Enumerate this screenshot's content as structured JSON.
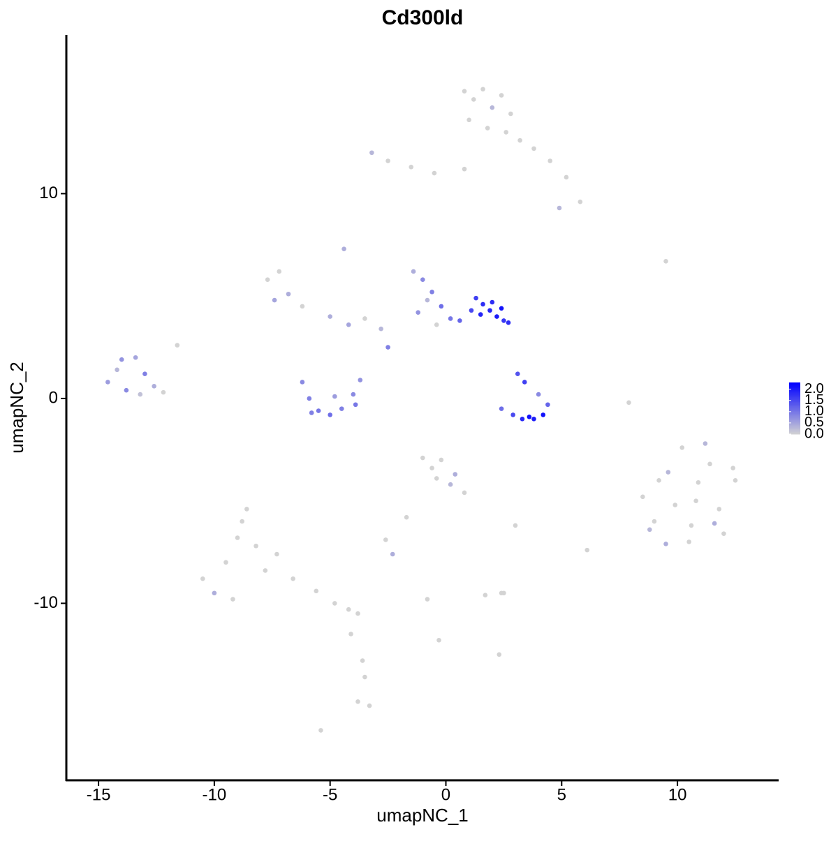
{
  "chart_data": {
    "type": "scatter",
    "title": "Cd300ld",
    "x_label": "umapNC_1",
    "y_label": "umapNC_2",
    "xlim": [
      -16.39,
      14.37
    ],
    "ylim": [
      -18.64,
      17.75
    ],
    "xticks": [
      -15,
      -10,
      -5,
      0,
      5,
      10
    ],
    "yticks": [
      -10,
      0,
      10
    ],
    "low_color": "#d3d3d3",
    "high_color": "#0000ff",
    "colorbar_lim": [
      0,
      2.3
    ],
    "colorbar_ticks": [
      {
        "value": 0,
        "label": "0.0"
      },
      {
        "value": 0.5,
        "label": "0.5"
      },
      {
        "value": 1,
        "label": "1.0"
      },
      {
        "value": 1.5,
        "label": "1.5"
      },
      {
        "value": 2,
        "label": "2.0"
      }
    ],
    "x": [
      0.8,
      1.2,
      1.6,
      2.0,
      2.4,
      2.8,
      1.0,
      1.8,
      2.6,
      3.2,
      3.8,
      4.5,
      5.2,
      5.8,
      4.9,
      -3.2,
      -2.5,
      -1.5,
      -0.5,
      0.8,
      -14.6,
      -14.2,
      -13.8,
      -13.4,
      -13.0,
      -12.6,
      -14.0,
      -13.2,
      -12.2,
      -11.6,
      -7.7,
      -7.2,
      -6.8,
      -7.4,
      -6.2,
      -5.0,
      -4.2,
      -3.5,
      -4.4,
      -2.8,
      -6.2,
      -5.9,
      -5.5,
      -5.0,
      -4.5,
      -4.0,
      -3.7,
      -3.9,
      -5.8,
      -4.8,
      -1.4,
      -1.0,
      -0.6,
      -0.2,
      -0.8,
      -1.2,
      -0.4,
      0.2,
      0.6,
      -2.5,
      1.3,
      1.6,
      1.9,
      2.2,
      2.5,
      1.5,
      2.0,
      2.4,
      1.1,
      2.7,
      2.4,
      2.9,
      3.3,
      3.8,
      4.2,
      4.4,
      3.1,
      3.4,
      3.6,
      4.0,
      8.5,
      9.0,
      9.6,
      10.2,
      10.8,
      11.4,
      12.0,
      12.5,
      10.5,
      11.2,
      9.2,
      9.9,
      10.6,
      11.8,
      12.4,
      9.5,
      10.9,
      11.6,
      8.8,
      7.9,
      -10.5,
      -10.0,
      -9.5,
      -9.0,
      -8.6,
      -8.2,
      -7.8,
      -9.2,
      -8.8,
      -7.3,
      -6.6,
      -5.6,
      -4.8,
      -4.2,
      -3.8,
      -4.1,
      -3.6,
      -3.5,
      -3.8,
      -3.3,
      -1.0,
      -0.6,
      -0.2,
      0.4,
      0.8,
      -0.4,
      0.2,
      -1.7,
      -2.6,
      -2.3,
      1.7,
      2.5,
      3.0,
      2.3,
      -0.8,
      -0.3,
      2.4,
      6.1,
      9.5,
      -5.4
    ],
    "values": [
      15.0,
      14.6,
      15.1,
      14.2,
      14.8,
      13.9,
      13.6,
      13.2,
      13.0,
      12.6,
      12.2,
      11.6,
      10.8,
      9.6,
      9.3,
      12.0,
      11.6,
      11.3,
      11.0,
      11.2,
      0.8,
      1.4,
      0.4,
      2.0,
      1.2,
      0.6,
      1.9,
      0.2,
      0.3,
      2.6,
      5.8,
      6.2,
      5.1,
      4.8,
      4.5,
      4.0,
      3.6,
      3.9,
      7.3,
      3.4,
      0.8,
      0.0,
      -0.6,
      -0.8,
      -0.5,
      0.2,
      0.9,
      -0.3,
      -0.7,
      0.1,
      6.2,
      5.8,
      5.2,
      4.5,
      4.8,
      4.2,
      3.6,
      3.9,
      3.8,
      2.5,
      4.9,
      4.6,
      4.3,
      4.0,
      3.8,
      4.1,
      4.7,
      4.4,
      4.3,
      3.7,
      -0.5,
      -0.8,
      -1.0,
      -1.0,
      -0.8,
      -0.3,
      1.2,
      0.8,
      -0.9,
      0.2,
      -4.8,
      -6.0,
      -3.6,
      -2.4,
      -5.0,
      -3.2,
      -6.6,
      -4.0,
      -7.0,
      -2.2,
      -4.0,
      -5.2,
      -6.2,
      -5.4,
      -3.4,
      -7.1,
      -4.1,
      -6.1,
      -6.4,
      -0.2,
      -8.8,
      -9.5,
      -8.0,
      -6.8,
      -5.4,
      -7.2,
      -8.4,
      -9.8,
      -6.0,
      -7.6,
      -8.8,
      -9.4,
      -10.0,
      -10.3,
      -10.5,
      -11.5,
      -12.8,
      -13.6,
      -14.8,
      -15.0,
      -2.9,
      -3.4,
      -3.0,
      -3.7,
      -4.6,
      -3.9,
      -4.2,
      -5.8,
      -6.9,
      -7.6,
      -9.6,
      -9.5,
      -6.2,
      -12.5,
      -9.8,
      -11.8,
      -9.5,
      -7.4,
      6.7,
      -16.2
    ],
    "color_values": [
      0,
      0,
      0,
      0.3,
      0,
      0,
      0,
      0,
      0,
      0,
      0,
      0,
      0,
      0,
      0.3,
      0.3,
      0,
      0,
      0,
      0,
      0.6,
      0.3,
      0.8,
      0.5,
      0.9,
      0.4,
      0.7,
      0.2,
      0,
      0,
      0,
      0,
      0.4,
      0.5,
      0,
      0.4,
      0.5,
      0,
      0.4,
      0.3,
      0.8,
      0.9,
      1.0,
      1.1,
      0.9,
      0.8,
      0.7,
      1.0,
      0.9,
      0.6,
      0.4,
      0.8,
      0.9,
      1.1,
      0.3,
      0.7,
      0,
      1.0,
      1.2,
      0.9,
      1.6,
      1.8,
      1.9,
      2.0,
      1.7,
      1.9,
      1.8,
      2.1,
      1.5,
      1.8,
      1.1,
      1.5,
      1.9,
      2.0,
      2.1,
      1.2,
      1.4,
      1.6,
      2.1,
      0.8,
      0,
      0,
      0.3,
      0,
      0,
      0,
      0,
      0,
      0,
      0.3,
      0,
      0,
      0,
      0,
      0,
      0.4,
      0,
      0.4,
      0.3,
      0,
      0,
      0.4,
      0,
      0,
      0,
      0,
      0,
      0,
      0,
      0,
      0,
      0,
      0,
      0,
      0,
      0,
      0,
      0,
      0,
      0,
      0,
      0,
      0,
      0.4,
      0,
      0,
      0.3,
      0,
      0,
      0.4,
      0,
      0,
      0,
      0,
      0,
      0,
      0,
      0,
      0,
      0
    ]
  }
}
